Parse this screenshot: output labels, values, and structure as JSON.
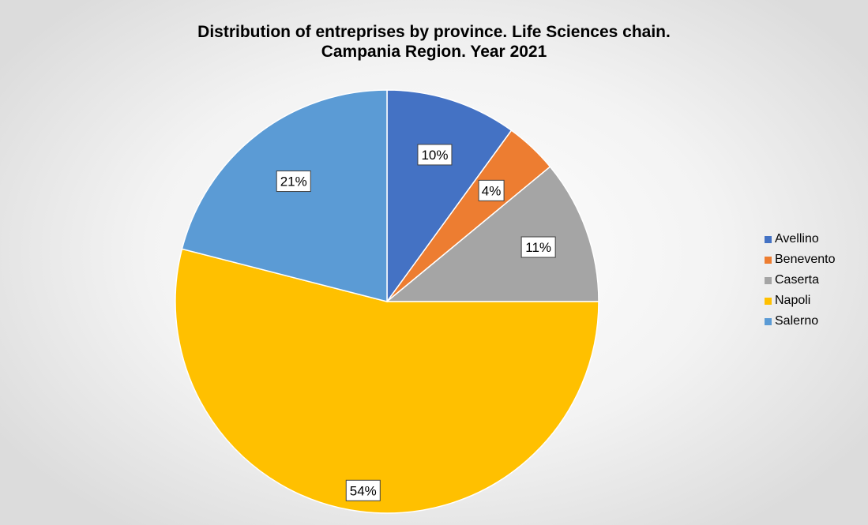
{
  "chart_data": {
    "type": "pie",
    "title": [
      "Distribution of entreprises by province. Life Sciences chain.",
      "Campania Region. Year 2021"
    ],
    "legend_position": "right",
    "slices": [
      {
        "name": "Avellino",
        "value": 10,
        "label": "10%",
        "color": "#4472C4"
      },
      {
        "name": "Benevento",
        "value": 4,
        "label": "4%",
        "color": "#ED7D31"
      },
      {
        "name": "Caserta",
        "value": 11,
        "label": "11%",
        "color": "#A5A5A5"
      },
      {
        "name": "Napoli",
        "value": 54,
        "label": "54%",
        "color": "#FFC000"
      },
      {
        "name": "Salerno",
        "value": 21,
        "label": "21%",
        "color": "#5B9BD5"
      }
    ]
  }
}
